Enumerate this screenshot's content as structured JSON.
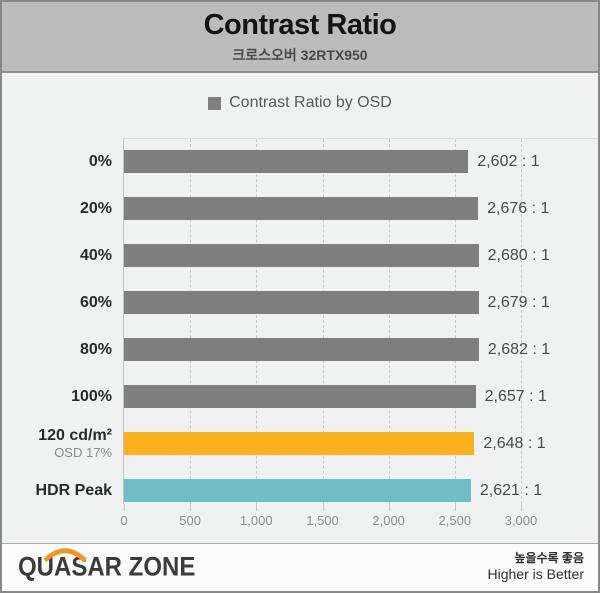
{
  "header": {
    "title": "Contrast Ratio",
    "subtitle": "크로스오버 32RTX950"
  },
  "legend": {
    "label": "Contrast Ratio by OSD",
    "swatch_color": "#7f7f7f"
  },
  "chart_data": {
    "type": "bar",
    "orientation": "horizontal",
    "title": "Contrast Ratio",
    "subtitle": "크로스오버 32RTX950",
    "legend_entries": [
      "Contrast Ratio by OSD"
    ],
    "legend_position": "top-center",
    "grid": "vertical-dashed",
    "xlim": [
      0,
      3000
    ],
    "x_ticks": [
      {
        "value": 0,
        "label": "0"
      },
      {
        "value": 500,
        "label": "500"
      },
      {
        "value": 1000,
        "label": "1,000"
      },
      {
        "value": 1500,
        "label": "1,500"
      },
      {
        "value": 2000,
        "label": "2,000"
      },
      {
        "value": 2500,
        "label": "2,500"
      },
      {
        "value": 3000,
        "label": "3,000"
      }
    ],
    "rows": [
      {
        "label": "0%",
        "sublabel": "",
        "value": 2602,
        "value_label": "2,602 : 1",
        "color": "#7f7f7f"
      },
      {
        "label": "20%",
        "sublabel": "",
        "value": 2676,
        "value_label": "2,676 : 1",
        "color": "#7f7f7f"
      },
      {
        "label": "40%",
        "sublabel": "",
        "value": 2680,
        "value_label": "2,680 : 1",
        "color": "#7f7f7f"
      },
      {
        "label": "60%",
        "sublabel": "",
        "value": 2679,
        "value_label": "2,679 : 1",
        "color": "#7f7f7f"
      },
      {
        "label": "80%",
        "sublabel": "",
        "value": 2682,
        "value_label": "2,682 : 1",
        "color": "#7f7f7f"
      },
      {
        "label": "100%",
        "sublabel": "",
        "value": 2657,
        "value_label": "2,657 : 1",
        "color": "#7f7f7f"
      },
      {
        "label": "120 cd/m²",
        "sublabel": "OSD 17%",
        "value": 2648,
        "value_label": "2,648 : 1",
        "color": "#fbb01c"
      },
      {
        "label": "HDR Peak",
        "sublabel": "",
        "value": 2621,
        "value_label": "2,621 : 1",
        "color": "#6fbec6"
      }
    ]
  },
  "footer": {
    "logo": "QUASAR ZONE",
    "note_ko": "높을수록 좋음",
    "note_en": "Higher is Better"
  },
  "colors": {
    "bar_gray": "#7f7f7f",
    "bar_orange": "#fbb01c",
    "bar_teal": "#6fbec6",
    "header_bg": "#bcbcbc",
    "chart_bg": "#f0f1f1",
    "logo_accent": "#f7941d"
  }
}
